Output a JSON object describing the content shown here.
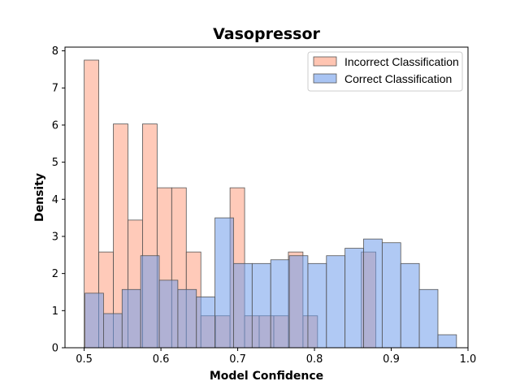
{
  "chart_data": {
    "type": "bar",
    "title": "Vasopressor",
    "xlabel": "Model Confidence",
    "ylabel": "Density",
    "xlim": [
      0.475,
      1.0
    ],
    "ylim": [
      0,
      8.1
    ],
    "xticks": [
      0.5,
      0.6,
      0.7,
      0.8,
      0.9,
      1.0
    ],
    "xtick_labels": [
      "0.5",
      "0.6",
      "0.7",
      "0.8",
      "0.9",
      "1.0"
    ],
    "yticks": [
      0,
      1,
      2,
      3,
      4,
      5,
      6,
      7,
      8
    ],
    "ytick_labels": [
      "0",
      "1",
      "2",
      "3",
      "4",
      "5",
      "6",
      "7",
      "8"
    ],
    "grid": false,
    "legend_position": "top-right",
    "series": [
      {
        "name": "Incorrect Classification",
        "color": "#ff9f7f",
        "bin_edges": [
          0.5,
          0.519,
          0.538,
          0.557,
          0.576,
          0.595,
          0.614,
          0.633,
          0.652,
          0.671,
          0.69,
          0.709,
          0.728,
          0.747,
          0.766,
          0.785,
          0.804,
          0.823,
          0.842,
          0.861,
          0.88
        ],
        "values": [
          7.75,
          2.58,
          6.03,
          3.44,
          6.03,
          4.31,
          4.31,
          2.58,
          0.86,
          0.86,
          4.31,
          0.86,
          0.86,
          0.86,
          2.58,
          0.86,
          0,
          0,
          0,
          2.58
        ]
      },
      {
        "name": "Correct Classification",
        "color": "#6f9ceb",
        "bin_edges": [
          0.501,
          0.5252,
          0.5494,
          0.5736,
          0.5978,
          0.622,
          0.6462,
          0.6704,
          0.6946,
          0.7188,
          0.743,
          0.7672,
          0.7914,
          0.8156,
          0.8398,
          0.864,
          0.8882,
          0.9124,
          0.9366,
          0.9608,
          0.985
        ],
        "values": [
          1.47,
          0.92,
          1.57,
          2.48,
          1.82,
          1.57,
          1.37,
          3.5,
          2.27,
          2.27,
          2.37,
          2.48,
          2.27,
          2.48,
          2.68,
          2.93,
          2.83,
          2.27,
          1.57,
          0.35
        ]
      }
    ]
  }
}
